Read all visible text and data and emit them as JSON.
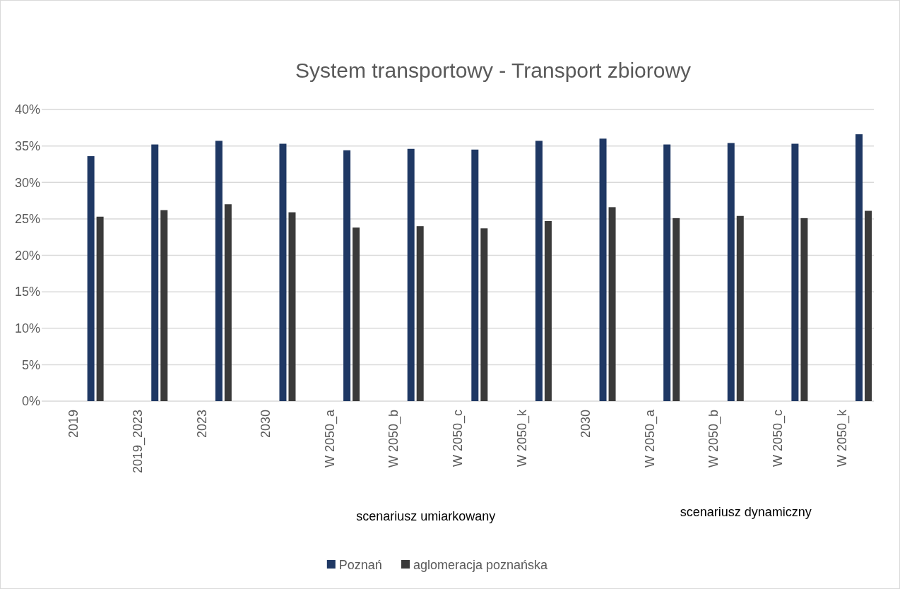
{
  "chart_data": {
    "type": "bar",
    "title": "System transportowy - Transport zbiorowy",
    "categories": [
      "2019",
      "2019_2023",
      "2023",
      "2030",
      "W 2050_a",
      "W 2050_b",
      "W 2050_c",
      "W 2050_k",
      "2030",
      "W 2050_a",
      "W 2050_b",
      "W 2050_c",
      "W 2050_k"
    ],
    "series": [
      {
        "name": "Poznań",
        "color": "#1f3864",
        "values": [
          33.6,
          35.2,
          35.7,
          35.3,
          34.4,
          34.6,
          34.5,
          35.7,
          36.0,
          35.2,
          35.4,
          35.3,
          36.6
        ]
      },
      {
        "name": "aglomeracja poznańska",
        "color": "#3a3a3a",
        "values": [
          25.3,
          26.2,
          27.0,
          25.9,
          23.8,
          24.0,
          23.7,
          24.7,
          26.6,
          25.1,
          25.4,
          25.1,
          26.1
        ]
      }
    ],
    "ylim": [
      0,
      40
    ],
    "yticks": [
      {
        "value": 0,
        "label": "0%"
      },
      {
        "value": 5,
        "label": "5%"
      },
      {
        "value": 10,
        "label": "10%"
      },
      {
        "value": 15,
        "label": "15%"
      },
      {
        "value": 20,
        "label": "20%"
      },
      {
        "value": 25,
        "label": "25%"
      },
      {
        "value": 30,
        "label": "30%"
      },
      {
        "value": 35,
        "label": "35%"
      },
      {
        "value": 40,
        "label": "40%"
      }
    ],
    "grid": "y",
    "legend": "bottom",
    "annotations": [
      "scenariusz umiarkowany",
      "scenariusz dynamiczny"
    ]
  }
}
